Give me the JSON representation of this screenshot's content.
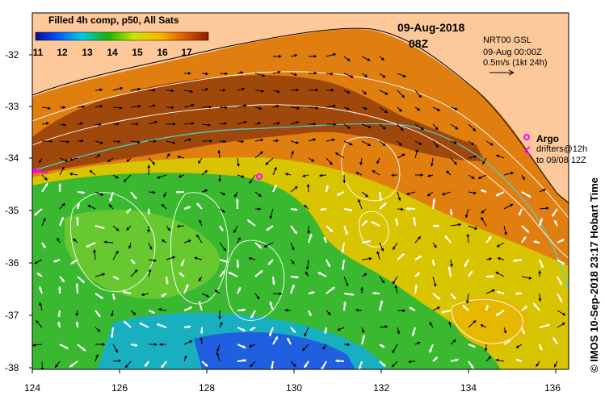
{
  "title": "Filled 4h comp, p50, All Sats",
  "colorbar": {
    "ticks": [
      "11",
      "12",
      "13",
      "14",
      "15",
      "16",
      "17"
    ],
    "colors": [
      "#0a0a8c",
      "#0050ff",
      "#00c8e6",
      "#16b400",
      "#c8e600",
      "#ffb400",
      "#e05a00",
      "#8c1e00"
    ]
  },
  "date": "09-Aug-2018",
  "time": "08Z",
  "current_source": "NRT00 GSL",
  "current_time": "09-Aug 00:00Z",
  "scale_label": "0.5m/s (1kt 24h)",
  "argo_label": "Argo",
  "drifters_line1": "drifters@12h",
  "drifters_line2": "to 09/08 12Z",
  "credit": "© IMOS 10-Sep-2018 23:17 Hobart Time",
  "y_axis": [
    "-32",
    "-33",
    "-34",
    "-35",
    "-36",
    "-37",
    "-38"
  ],
  "x_axis": [
    "124",
    "126",
    "128",
    "130",
    "132",
    "134",
    "136"
  ],
  "colors": {
    "land": "#fdc99b",
    "contour": "#ffffff",
    "shelf": "#40d8d8",
    "argo": "#ff00ff",
    "arrow": "#000000",
    "arrow_alt": "#ffffff"
  }
}
